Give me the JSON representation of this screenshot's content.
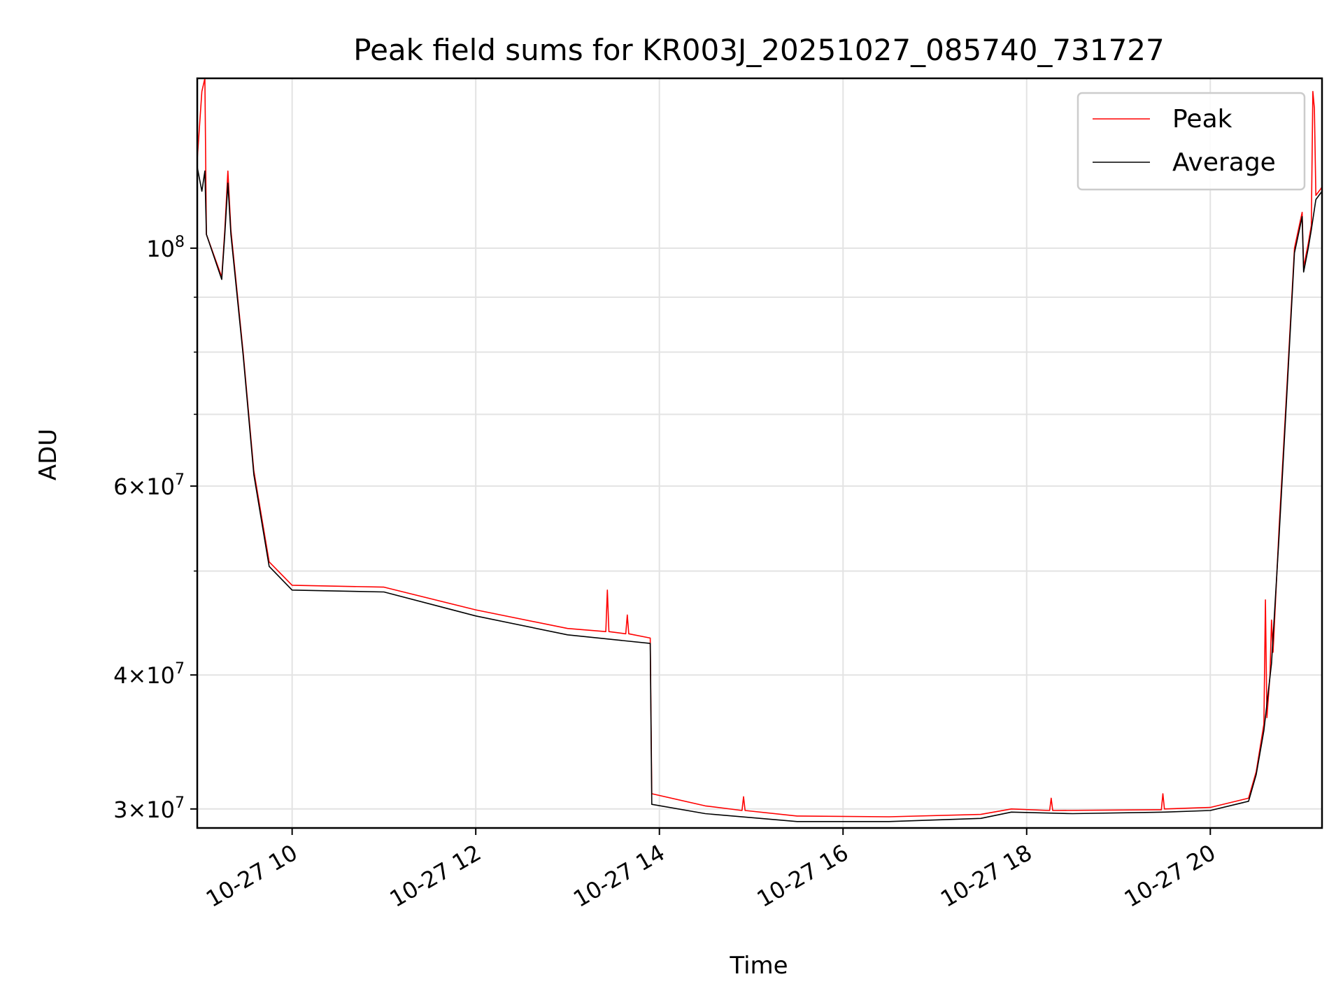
{
  "chart_data": {
    "type": "line",
    "title": "Peak field sums for KR003J_20251027_085740_731727",
    "xlabel": "Time",
    "ylabel": "ADU",
    "yscale": "log",
    "grid": true,
    "legend_position": "top-right",
    "xlim": [
      "2025-10-27 08:58",
      "2025-10-27 21:13"
    ],
    "ylim": [
      28800000,
      144000000
    ],
    "x_ticks": [
      "10-27 10",
      "10-27 12",
      "10-27 14",
      "10-27 16",
      "10-27 18",
      "10-27 20"
    ],
    "y_ticks": [
      {
        "value": 30000000,
        "mantissa": "3",
        "exponent": "7"
      },
      {
        "value": 40000000,
        "mantissa": "4",
        "exponent": "7"
      },
      {
        "value": 60000000,
        "mantissa": "6",
        "exponent": "7"
      },
      {
        "value": 100000000,
        "mantissa": "",
        "exponent": "8"
      }
    ],
    "series": [
      {
        "name": "Peak",
        "color": "#ff0000",
        "points": [
          [
            "2025-10-27 08:58",
            121000000
          ],
          [
            "2025-10-27 09:01",
            140000000
          ],
          [
            "2025-10-27 09:03",
            144000000
          ],
          [
            "2025-10-27 09:04",
            103000000
          ],
          [
            "2025-10-27 09:14",
            94000000
          ],
          [
            "2025-10-27 09:16",
            104000000
          ],
          [
            "2025-10-27 09:18",
            118000000
          ],
          [
            "2025-10-27 09:20",
            104000000
          ],
          [
            "2025-10-27 09:28",
            80000000
          ],
          [
            "2025-10-27 09:35",
            62000000
          ],
          [
            "2025-10-27 09:45",
            51000000
          ],
          [
            "2025-10-27 10:00",
            48500000
          ],
          [
            "2025-10-27 11:00",
            48300000
          ],
          [
            "2025-10-27 12:00",
            46000000
          ],
          [
            "2025-10-27 13:00",
            44200000
          ],
          [
            "2025-10-27 13:25",
            43900000
          ],
          [
            "2025-10-27 13:26",
            48000000
          ],
          [
            "2025-10-27 13:27",
            43900000
          ],
          [
            "2025-10-27 13:38",
            43700000
          ],
          [
            "2025-10-27 13:39",
            45500000
          ],
          [
            "2025-10-27 13:40",
            43700000
          ],
          [
            "2025-10-27 13:54",
            43300000
          ],
          [
            "2025-10-27 13:55",
            31000000
          ],
          [
            "2025-10-27 14:30",
            30200000
          ],
          [
            "2025-10-27 14:54",
            29900000
          ],
          [
            "2025-10-27 14:55",
            30800000
          ],
          [
            "2025-10-27 14:56",
            29900000
          ],
          [
            "2025-10-27 15:30",
            29550000
          ],
          [
            "2025-10-27 16:30",
            29500000
          ],
          [
            "2025-10-27 17:30",
            29650000
          ],
          [
            "2025-10-27 17:50",
            30000000
          ],
          [
            "2025-10-27 18:15",
            29900000
          ],
          [
            "2025-10-27 18:16",
            30700000
          ],
          [
            "2025-10-27 18:17",
            29900000
          ],
          [
            "2025-10-27 19:28",
            29950000
          ],
          [
            "2025-10-27 19:29",
            31000000
          ],
          [
            "2025-10-27 19:30",
            30000000
          ],
          [
            "2025-10-27 20:00",
            30100000
          ],
          [
            "2025-10-27 20:25",
            30700000
          ],
          [
            "2025-10-27 20:30",
            32500000
          ],
          [
            "2025-10-27 20:35",
            36000000
          ],
          [
            "2025-10-27 20:36",
            47000000
          ],
          [
            "2025-10-27 20:37",
            36500000
          ],
          [
            "2025-10-27 20:39",
            40000000
          ],
          [
            "2025-10-27 20:40",
            45000000
          ],
          [
            "2025-10-27 20:41",
            42000000
          ],
          [
            "2025-10-27 20:45",
            55000000
          ],
          [
            "2025-10-27 20:50",
            74000000
          ],
          [
            "2025-10-27 20:55",
            100000000
          ],
          [
            "2025-10-27 21:00",
            108000000
          ],
          [
            "2025-10-27 21:01",
            96000000
          ],
          [
            "2025-10-27 21:04",
            101000000
          ],
          [
            "2025-10-27 21:06",
            105000000
          ],
          [
            "2025-10-27 21:07",
            140000000
          ],
          [
            "2025-10-27 21:08",
            135000000
          ],
          [
            "2025-10-27 21:09",
            112000000
          ],
          [
            "2025-10-27 21:13",
            114000000
          ]
        ]
      },
      {
        "name": "Average",
        "color": "#000000",
        "points": [
          [
            "2025-10-27 08:58",
            119000000
          ],
          [
            "2025-10-27 09:01",
            113000000
          ],
          [
            "2025-10-27 09:03",
            118000000
          ],
          [
            "2025-10-27 09:04",
            103000000
          ],
          [
            "2025-10-27 09:14",
            93500000
          ],
          [
            "2025-10-27 09:16",
            103000000
          ],
          [
            "2025-10-27 09:18",
            115000000
          ],
          [
            "2025-10-27 09:20",
            103000000
          ],
          [
            "2025-10-27 09:28",
            79500000
          ],
          [
            "2025-10-27 09:35",
            61500000
          ],
          [
            "2025-10-27 09:45",
            50500000
          ],
          [
            "2025-10-27 10:00",
            48000000
          ],
          [
            "2025-10-27 11:00",
            47800000
          ],
          [
            "2025-10-27 12:00",
            45400000
          ],
          [
            "2025-10-27 13:00",
            43600000
          ],
          [
            "2025-10-27 13:54",
            42800000
          ],
          [
            "2025-10-27 13:55",
            30300000
          ],
          [
            "2025-10-27 14:30",
            29700000
          ],
          [
            "2025-10-27 15:30",
            29200000
          ],
          [
            "2025-10-27 16:30",
            29200000
          ],
          [
            "2025-10-27 17:30",
            29400000
          ],
          [
            "2025-10-27 17:50",
            29800000
          ],
          [
            "2025-10-27 18:30",
            29700000
          ],
          [
            "2025-10-27 19:30",
            29800000
          ],
          [
            "2025-10-27 20:00",
            29900000
          ],
          [
            "2025-10-27 20:25",
            30500000
          ],
          [
            "2025-10-27 20:30",
            32300000
          ],
          [
            "2025-10-27 20:35",
            35500000
          ],
          [
            "2025-10-27 20:40",
            41000000
          ],
          [
            "2025-10-27 20:45",
            54000000
          ],
          [
            "2025-10-27 20:50",
            73000000
          ],
          [
            "2025-10-27 20:55",
            99000000
          ],
          [
            "2025-10-27 21:00",
            107000000
          ],
          [
            "2025-10-27 21:01",
            95000000
          ],
          [
            "2025-10-27 21:04",
            100000000
          ],
          [
            "2025-10-27 21:06",
            104000000
          ],
          [
            "2025-10-27 21:09",
            111000000
          ],
          [
            "2025-10-27 21:13",
            113000000
          ]
        ]
      }
    ]
  }
}
